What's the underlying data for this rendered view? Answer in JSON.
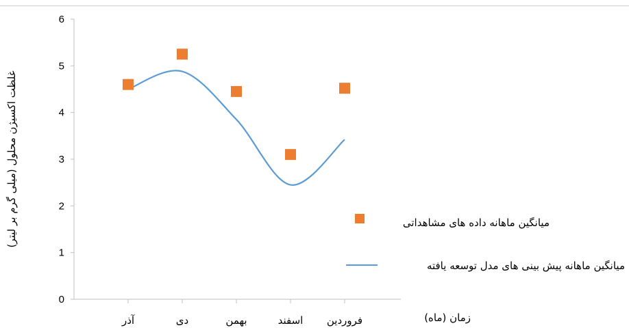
{
  "chart_data": {
    "type": "line",
    "categories": [
      "آذر",
      "دی",
      "بهمن",
      "اسفند",
      "فروردین"
    ],
    "xlabel": "زمان (ماه)",
    "ylabel": "غلظت اکسیژن محلول (میلی گرم بر لیتر)",
    "ylim": [
      0,
      6
    ],
    "yticks": [
      0,
      1,
      2,
      3,
      4,
      5,
      6
    ],
    "grid": false,
    "legend_position": "right",
    "series": [
      {
        "name": "میانگین ماهانه داده های مشاهداتی",
        "kind": "scatter",
        "marker": "square",
        "color": "#ED7D31",
        "values": [
          4.6,
          5.25,
          4.45,
          3.1,
          4.52
        ]
      },
      {
        "name": "میانگین ماهانه پیش بینی های مدل توسعه یافته",
        "kind": "line",
        "smooth": true,
        "color": "#5B9BD5",
        "values": [
          4.5,
          4.88,
          3.85,
          2.45,
          3.42
        ]
      }
    ]
  }
}
